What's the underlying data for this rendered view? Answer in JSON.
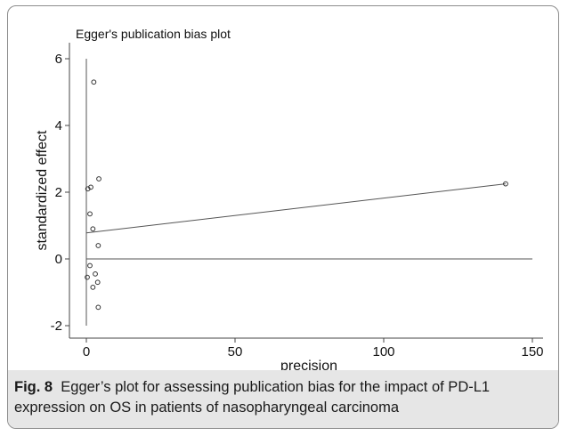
{
  "chart_data": {
    "type": "scatter",
    "title": "Egger's publication bias plot",
    "xlabel": "precision",
    "ylabel": "standardized effect",
    "xlim": [
      0,
      150
    ],
    "ylim": [
      -2,
      6
    ],
    "x_ticks": [
      "0",
      "50",
      "100",
      "150"
    ],
    "y_ticks": [
      "-2",
      "0",
      "2",
      "4",
      "6"
    ],
    "points": [
      {
        "x": 2.5,
        "y": 5.3
      },
      {
        "x": 4.2,
        "y": 2.4
      },
      {
        "x": 1.5,
        "y": 2.15
      },
      {
        "x": 0.5,
        "y": 2.1
      },
      {
        "x": 1.2,
        "y": 1.35
      },
      {
        "x": 2.2,
        "y": 0.9
      },
      {
        "x": 4.0,
        "y": 0.4
      },
      {
        "x": 1.2,
        "y": -0.2
      },
      {
        "x": 3.0,
        "y": -0.45
      },
      {
        "x": 0.3,
        "y": -0.55
      },
      {
        "x": 3.8,
        "y": -0.7
      },
      {
        "x": 2.2,
        "y": -0.85
      },
      {
        "x": 4.0,
        "y": -1.45
      },
      {
        "x": 141,
        "y": 2.25
      }
    ],
    "regression_line": {
      "x": [
        0,
        141
      ],
      "y": [
        0.78,
        2.25
      ]
    },
    "reference_line_y": 0,
    "vertical_line": {
      "x": 0,
      "y_from": -2.0,
      "y_to": 6.0
    },
    "grid": false,
    "legend": "none"
  },
  "caption": {
    "label": "Fig. 8",
    "text": "Egger’s plot for assessing publication bias for the impact of PD-L1 expression on OS in patients of nasopharyngeal carcinoma"
  }
}
